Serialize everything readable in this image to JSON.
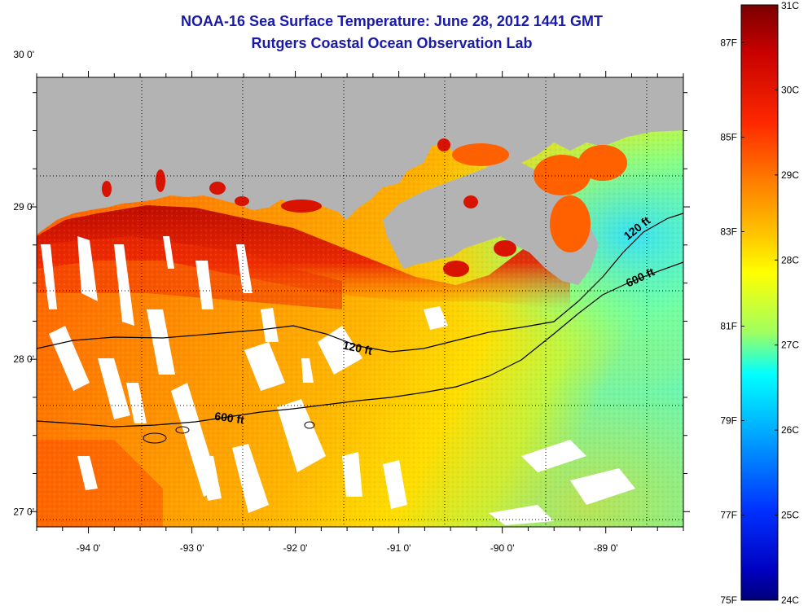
{
  "title": {
    "line1": "NOAA-16 Sea Surface Temperature:  June 28, 2012 1441 GMT",
    "line2": "Rutgers Coastal Ocean Observation Lab"
  },
  "colors": {
    "title": "#1a1aa8",
    "land": "#b3b3b3",
    "cloud": "#ffffff",
    "grid": "#000000"
  },
  "map": {
    "lon_range": [
      -94.5,
      -88.25
    ],
    "lat_range": [
      26.9,
      29.85
    ],
    "lon_ticks": [
      {
        "value": -94,
        "label": "-94 0'"
      },
      {
        "value": -93,
        "label": "-93 0'"
      },
      {
        "value": -92,
        "label": "-92 0'"
      },
      {
        "value": -91,
        "label": "-91 0'"
      },
      {
        "value": -90,
        "label": "-90 0'"
      },
      {
        "value": -89,
        "label": "-89 0'"
      }
    ],
    "lat_ticks": [
      {
        "value": 30,
        "label": "30 0'"
      },
      {
        "value": 29,
        "label": "29 0'"
      },
      {
        "value": 28,
        "label": "28 0'"
      },
      {
        "value": 27,
        "label": "27 0'"
      }
    ],
    "contours": [
      {
        "label": "120 ft"
      },
      {
        "label": "600 ft"
      },
      {
        "label": "120 ft"
      },
      {
        "label": "600 ft"
      }
    ]
  },
  "colorbar": {
    "min_c": 24,
    "max_c": 31,
    "celsius_labels": [
      "31C",
      "30C",
      "29C",
      "28C",
      "27C",
      "26C",
      "25C",
      "24C"
    ],
    "fahrenheit_labels": [
      "87F",
      "85F",
      "83F",
      "81F",
      "79F",
      "77F",
      "75F"
    ],
    "celsius_values": [
      31,
      30,
      29,
      28,
      27,
      26,
      25,
      24
    ],
    "fahrenheit_values": [
      87,
      85,
      83,
      81,
      79,
      77,
      75
    ]
  }
}
